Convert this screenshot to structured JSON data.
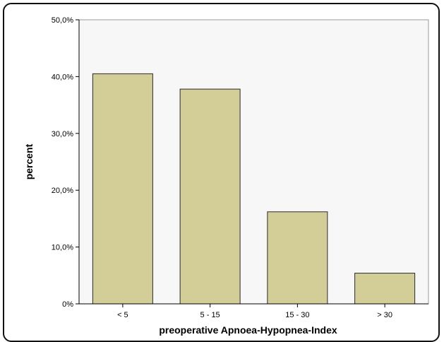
{
  "chart_data": {
    "type": "bar",
    "title": "",
    "xlabel": "preoperative Apnoea-Hypopnea-Index",
    "ylabel": "percent",
    "categories": [
      "< 5",
      "5 - 15",
      "15 - 30",
      "> 30"
    ],
    "values": [
      40.5,
      37.8,
      16.2,
      5.4
    ],
    "ylim": [
      0,
      50
    ],
    "yticks": [
      0,
      10,
      20,
      30,
      40,
      50
    ],
    "ytick_labels": [
      "0%",
      "10,0%",
      "20,0%",
      "30,0%",
      "40,0%",
      "50,0%"
    ],
    "grid": false,
    "legend": "none",
    "colors": {
      "bar_fill": "#d3cd97",
      "bar_stroke": "#2a2a2a",
      "plot_background": "#f7f7f7",
      "axis": "#000000"
    }
  }
}
